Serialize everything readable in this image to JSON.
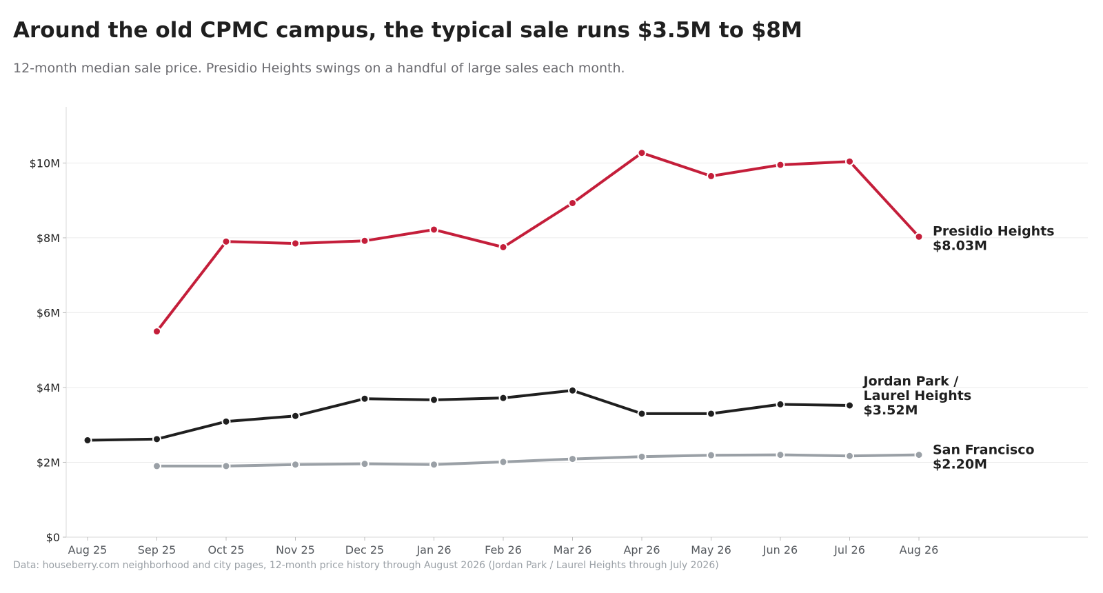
{
  "title": "Around the old CPMC campus, the typical sale runs $3.5M to $8M",
  "subtitle": "12-month median sale price. Presidio Heights swings on a handful of large sales each month.",
  "source": "Data: houseberry.com neighborhood and city pages, 12-month price history through August 2026 (Jordan Park / Laurel Heights through July 2026)",
  "chart_data": {
    "type": "line",
    "categories": [
      "Aug 25",
      "Sep 25",
      "Oct 25",
      "Nov 25",
      "Dec 25",
      "Jan 26",
      "Feb 26",
      "Mar 26",
      "Apr 26",
      "May 26",
      "Jun 26",
      "Jul 26",
      "Aug 26"
    ],
    "y_unit": "USD millions",
    "ylim": [
      0,
      11.5
    ],
    "yticks": [
      0,
      2,
      4,
      6,
      8,
      10
    ],
    "ytick_labels": [
      "$0",
      "$2M",
      "$4M",
      "$6M",
      "$8M",
      "$10M"
    ],
    "grid": "horizontal",
    "legend": "none (direct end labels)",
    "series": [
      {
        "name": "Presidio Heights",
        "end_label": [
          "Presidio Heights",
          "$8.03M"
        ],
        "color": "#c41e3a",
        "values": [
          null,
          5.5,
          7.9,
          7.85,
          7.92,
          8.22,
          7.75,
          8.93,
          10.27,
          9.65,
          9.95,
          10.04,
          8.03
        ]
      },
      {
        "name": "Jordan Park / Laurel Heights",
        "end_label": [
          "Jordan Park /",
          "Laurel Heights",
          "$3.52M"
        ],
        "color": "#1f1f1f",
        "values": [
          2.59,
          2.62,
          3.09,
          3.24,
          3.7,
          3.67,
          3.72,
          3.92,
          3.3,
          3.3,
          3.55,
          3.52,
          null
        ]
      },
      {
        "name": "San Francisco",
        "end_label": [
          "San Francisco",
          "$2.20M"
        ],
        "color": "#9aa0a6",
        "values": [
          null,
          1.9,
          1.9,
          1.94,
          1.96,
          1.94,
          2.01,
          2.09,
          2.15,
          2.19,
          2.2,
          2.17,
          2.2
        ]
      }
    ]
  }
}
